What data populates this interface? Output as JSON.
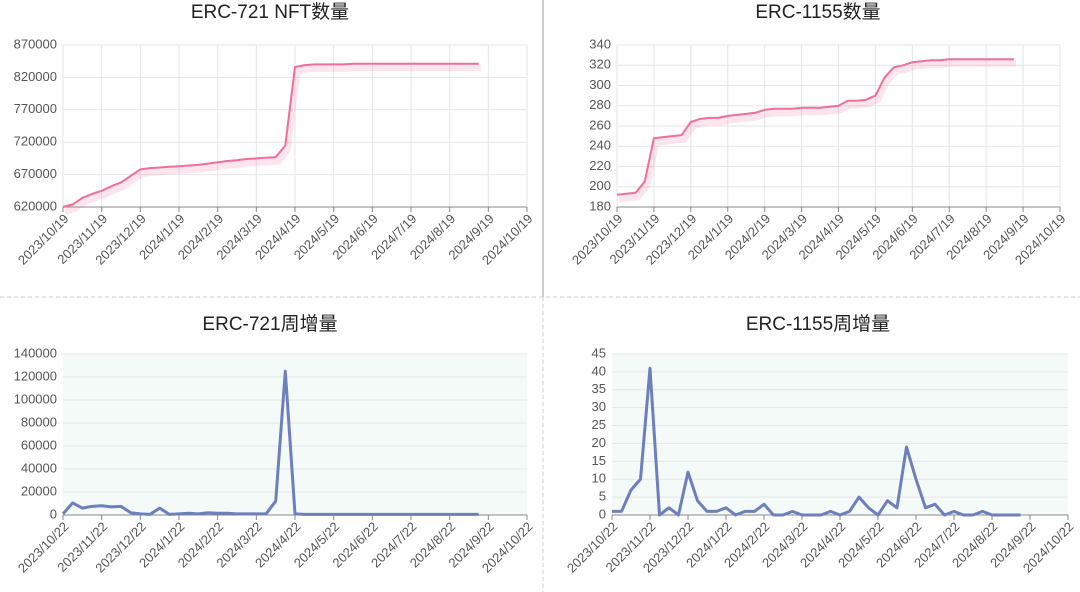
{
  "chart_data": [
    {
      "type": "line",
      "title": "ERC-721 NFT数量",
      "categories": [
        "2023/10/19",
        null,
        null,
        null,
        "2023/11/19",
        null,
        null,
        null,
        "2023/12/19",
        null,
        null,
        null,
        "2024/1/19",
        null,
        null,
        null,
        "2024/2/19",
        null,
        null,
        null,
        "2024/3/19",
        null,
        null,
        null,
        "2024/4/19",
        null,
        null,
        null,
        "2024/5/19",
        null,
        null,
        null,
        "2024/6/19",
        null,
        null,
        null,
        "2024/7/19",
        null,
        null,
        null,
        "2024/8/19",
        null,
        null,
        null,
        "2024/9/19",
        null,
        null,
        null,
        "2024/10/19"
      ],
      "series": [
        {
          "color": "#ef6f98",
          "values": [
            620000,
            624000,
            634000,
            640000,
            645000,
            652000,
            658000,
            668000,
            678000,
            680000,
            681000,
            682000,
            683000,
            684000,
            685000,
            687000,
            689000,
            691000,
            692000,
            694000,
            695000,
            696000,
            697000,
            715000,
            836000,
            839000,
            840000,
            840000,
            840000,
            840000,
            841000,
            841000,
            841000,
            841000,
            841000,
            841000,
            841000,
            841000,
            841000,
            841000,
            841000,
            841000,
            841000,
            841000,
            null,
            null,
            null,
            null,
            null
          ]
        }
      ],
      "ylim": [
        620000,
        870000
      ],
      "yticks": [
        620000,
        670000,
        720000,
        770000,
        820000,
        870000
      ],
      "grid": true
    },
    {
      "type": "line",
      "title": "ERC-1155数量",
      "categories": [
        "2023/10/19",
        null,
        null,
        null,
        "2023/11/19",
        null,
        null,
        null,
        "2023/12/19",
        null,
        null,
        null,
        "2024/1/19",
        null,
        null,
        null,
        "2024/2/19",
        null,
        null,
        null,
        "2024/3/19",
        null,
        null,
        null,
        "2024/4/19",
        null,
        null,
        null,
        "2024/5/19",
        null,
        null,
        null,
        "2024/6/19",
        null,
        null,
        null,
        "2024/7/19",
        null,
        null,
        null,
        "2024/8/19",
        null,
        null,
        null,
        "2024/9/19",
        null,
        null,
        null,
        "2024/10/19"
      ],
      "series": [
        {
          "color": "#ef6f98",
          "values": [
            192,
            193,
            194,
            205,
            248,
            249,
            250,
            251,
            264,
            267,
            268,
            268,
            270,
            271,
            272,
            273,
            276,
            277,
            277,
            277,
            278,
            278,
            278,
            279,
            280,
            285,
            285,
            286,
            290,
            308,
            318,
            320,
            323,
            324,
            325,
            325,
            326,
            326,
            326,
            326,
            326,
            326,
            326,
            326,
            null,
            null,
            null,
            null,
            null
          ]
        }
      ],
      "ylim": [
        180,
        340
      ],
      "yticks": [
        180,
        200,
        220,
        240,
        260,
        280,
        300,
        320,
        340
      ],
      "grid": true
    },
    {
      "type": "line",
      "title": "ERC-721周增量",
      "categories": [
        "2023/10/22",
        null,
        null,
        null,
        "2023/11/22",
        null,
        null,
        null,
        "2023/12/22",
        null,
        null,
        null,
        "2024/1/22",
        null,
        null,
        null,
        "2024/2/22",
        null,
        null,
        null,
        "2024/3/22",
        null,
        null,
        null,
        "2024/4/22",
        null,
        null,
        null,
        "2024/5/22",
        null,
        null,
        null,
        "2024/6/22",
        null,
        null,
        null,
        "2024/7/22",
        null,
        null,
        null,
        "2024/8/22",
        null,
        null,
        null,
        "2024/9/22",
        null,
        null,
        null,
        "2024/10/22"
      ],
      "series": [
        {
          "color": "#6e7fbd",
          "values": [
            1000,
            10500,
            6000,
            7500,
            8000,
            7000,
            7500,
            2000,
            1000,
            500,
            6000,
            500,
            1000,
            1500,
            1000,
            2000,
            1500,
            1500,
            1000,
            1000,
            1000,
            1000,
            12000,
            125000,
            1000,
            500,
            500,
            500,
            500,
            500,
            500,
            500,
            500,
            500,
            500,
            500,
            500,
            500,
            500,
            500,
            500,
            500,
            500,
            500,
            null,
            null,
            null,
            null,
            null
          ]
        }
      ],
      "ylim": [
        0,
        140000
      ],
      "yticks": [
        0,
        20000,
        40000,
        60000,
        80000,
        100000,
        120000,
        140000
      ],
      "grid": true,
      "plot_background": "#f3faf7"
    },
    {
      "type": "line",
      "title": "ERC-1155周增量",
      "categories": [
        "2023/10/22",
        null,
        null,
        null,
        "2023/11/22",
        null,
        null,
        null,
        "2023/12/22",
        null,
        null,
        null,
        "2024/1/22",
        null,
        null,
        null,
        "2024/2/22",
        null,
        null,
        null,
        "2024/3/22",
        null,
        null,
        null,
        "2024/4/22",
        null,
        null,
        null,
        "2024/5/22",
        null,
        null,
        null,
        "2024/6/22",
        null,
        null,
        null,
        "2024/7/22",
        null,
        null,
        null,
        "2024/8/22",
        null,
        null,
        null,
        "2024/9/22",
        null,
        null,
        null,
        "2024/10/22"
      ],
      "series": [
        {
          "color": "#6e7fbd",
          "values": [
            1,
            1,
            7,
            10,
            41,
            0,
            2,
            0,
            12,
            4,
            1,
            1,
            2,
            0,
            1,
            1,
            3,
            0,
            0,
            1,
            0,
            0,
            0,
            1,
            0,
            1,
            5,
            2,
            0,
            4,
            2,
            19,
            10,
            2,
            3,
            0,
            1,
            0,
            0,
            1,
            0,
            0,
            0,
            0,
            null,
            null,
            null,
            null,
            null
          ]
        }
      ],
      "ylim": [
        0,
        45
      ],
      "yticks": [
        0,
        5,
        10,
        15,
        20,
        25,
        30,
        35,
        40,
        45
      ],
      "grid": true,
      "plot_background": "#f3faf7"
    }
  ]
}
